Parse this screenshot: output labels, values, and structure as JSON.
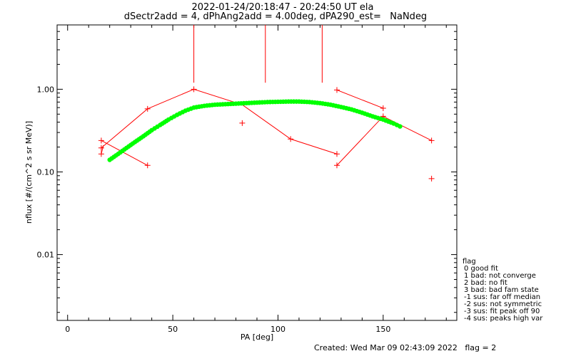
{
  "header": {
    "line1": "2022-01-24/20:18:47 - 20:24:50 UT ela",
    "line2": "dSectr2add = 4, dPhAng2add = 4.00deg, dPA290_est=   NaNdeg"
  },
  "footer": {
    "created": "Created: Wed Mar 09 02:43:09 2022",
    "flag": "flag = 2"
  },
  "flag_legend": {
    "title": "flag",
    "items": [
      " 0 good fit",
      " 1 bad: not converge",
      " 2 bad: no fit",
      " 3 bad: bad fam state",
      "-1 sus: far off median",
      "-2 sus: not symmetric",
      "-3 sus: fit peak off 90",
      "-4 sus: peaks high var"
    ]
  },
  "colors": {
    "data": "#ff0000",
    "fit": "#00ff00",
    "axes": "#000000"
  },
  "chart_data": {
    "type": "scatter",
    "xlabel": "PA [deg]",
    "ylabel": "nflux [#/(cm^2 s sr MeV)]",
    "xlim": [
      -5,
      185
    ],
    "ylim": [
      0.0016,
      6.0
    ],
    "yscale": "log",
    "xticks": [
      0,
      50,
      100,
      150
    ],
    "xtick_labels": [
      "0",
      "50",
      "100",
      "150"
    ],
    "yticks": [
      0.01,
      0.1,
      1.0
    ],
    "ytick_labels": [
      "0.01",
      "0.10",
      "1.00"
    ],
    "grid": false,
    "series": [
      {
        "kind": "measured",
        "style": "line+plus",
        "color": "#ff0000",
        "segments": [
          [
            [
              16,
              0.195
            ],
            [
              38,
              0.58
            ],
            [
              60,
              1.0
            ],
            [
              83,
              0.65
            ],
            [
              106,
              0.25
            ],
            [
              128,
              0.165
            ]
          ],
          [
            [
              16,
              0.24
            ],
            [
              38,
              0.12
            ]
          ],
          [
            [
              16,
              0.165
            ],
            [
              17,
              0.21
            ]
          ],
          [
            [
              128,
              0.12
            ],
            [
              150,
              0.47
            ],
            [
              173,
              0.24
            ]
          ],
          [
            [
              128,
              0.98
            ],
            [
              150,
              0.59
            ]
          ]
        ],
        "points": [
          [
            16,
            0.24
          ],
          [
            16,
            0.195
          ],
          [
            16,
            0.165
          ],
          [
            38,
            0.58
          ],
          [
            38,
            0.12
          ],
          [
            60,
            1.0
          ],
          [
            83,
            0.39
          ],
          [
            106,
            0.25
          ],
          [
            128,
            0.98
          ],
          [
            128,
            0.165
          ],
          [
            128,
            0.12
          ],
          [
            150,
            0.59
          ],
          [
            150,
            0.47
          ],
          [
            173,
            0.24
          ],
          [
            173,
            0.083
          ]
        ],
        "vertical_lines_from": [
          [
            60,
            1.2
          ],
          [
            94,
            1.2
          ],
          [
            121,
            1.2
          ]
        ]
      },
      {
        "kind": "fit",
        "style": "dots",
        "color": "#00ff00",
        "x": [
          20,
          24,
          28,
          32,
          36,
          40,
          44,
          48,
          52,
          56,
          60,
          65,
          70,
          75,
          80,
          85,
          90,
          95,
          100,
          105,
          110,
          115,
          120,
          125,
          130,
          135,
          140,
          145,
          150,
          155,
          158
        ],
        "y": [
          0.14,
          0.165,
          0.195,
          0.23,
          0.27,
          0.32,
          0.37,
          0.43,
          0.49,
          0.55,
          0.6,
          0.63,
          0.65,
          0.66,
          0.67,
          0.68,
          0.69,
          0.7,
          0.705,
          0.71,
          0.71,
          0.7,
          0.68,
          0.65,
          0.61,
          0.57,
          0.52,
          0.47,
          0.43,
          0.385,
          0.355
        ]
      }
    ]
  }
}
